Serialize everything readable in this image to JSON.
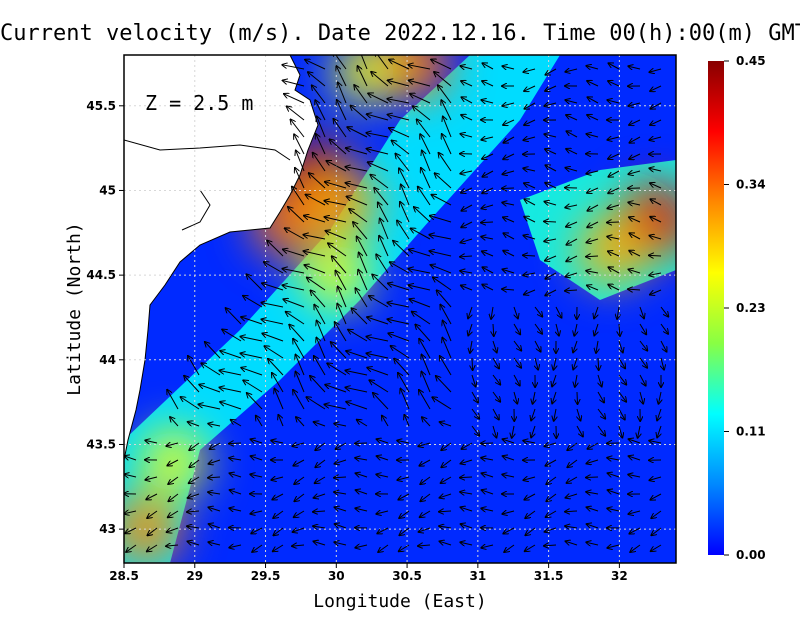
{
  "chart_data": {
    "type": "heatmap",
    "title": "Current velocity (m/s). Date 2022.12.16. Time 00(h):00(m) GMT",
    "annotation": "Z = 2.5 m",
    "xlabel": "Longitude (East)",
    "ylabel": "Latitude (North)",
    "xlim": [
      28.5,
      32.4
    ],
    "ylim": [
      42.8,
      45.8
    ],
    "x_ticks": [
      "28.5",
      "29",
      "29.5",
      "30",
      "30.5",
      "31",
      "31.5",
      "32"
    ],
    "x_tick_values": [
      28.5,
      29,
      29.5,
      30,
      30.5,
      31,
      31.5,
      32
    ],
    "y_ticks": [
      "43",
      "43.5",
      "44",
      "44.5",
      "45",
      "45.5"
    ],
    "y_tick_values": [
      43,
      43.5,
      44,
      44.5,
      45,
      45.5
    ],
    "grid": true,
    "colorbar": {
      "min": 0.0,
      "max": 0.45,
      "tick_labels": [
        "0.00",
        "0.11",
        "0.23",
        "0.34",
        "0.45"
      ],
      "tick_values": [
        0.0,
        0.1125,
        0.225,
        0.3375,
        0.45
      ],
      "colors": [
        "#0000ff",
        "#0088ff",
        "#00ffff",
        "#88ff44",
        "#ffff00",
        "#ff8800",
        "#ff0000",
        "#880000"
      ]
    },
    "speed_hotspots": [
      {
        "lon": 29.85,
        "lat": 45.08,
        "speed": 0.42
      },
      {
        "lon": 29.65,
        "lat": 44.82,
        "speed": 0.33
      },
      {
        "lon": 30.05,
        "lat": 44.92,
        "speed": 0.3
      },
      {
        "lon": 32.25,
        "lat": 44.82,
        "speed": 0.4
      },
      {
        "lon": 31.95,
        "lat": 44.65,
        "speed": 0.3
      },
      {
        "lon": 28.65,
        "lat": 43.0,
        "speed": 0.32
      },
      {
        "lon": 28.85,
        "lat": 43.4,
        "speed": 0.25
      },
      {
        "lon": 30.0,
        "lat": 44.5,
        "speed": 0.25
      },
      {
        "lon": 30.55,
        "lat": 45.75,
        "speed": 0.33
      },
      {
        "lon": 30.2,
        "lat": 45.7,
        "speed": 0.25
      }
    ]
  }
}
